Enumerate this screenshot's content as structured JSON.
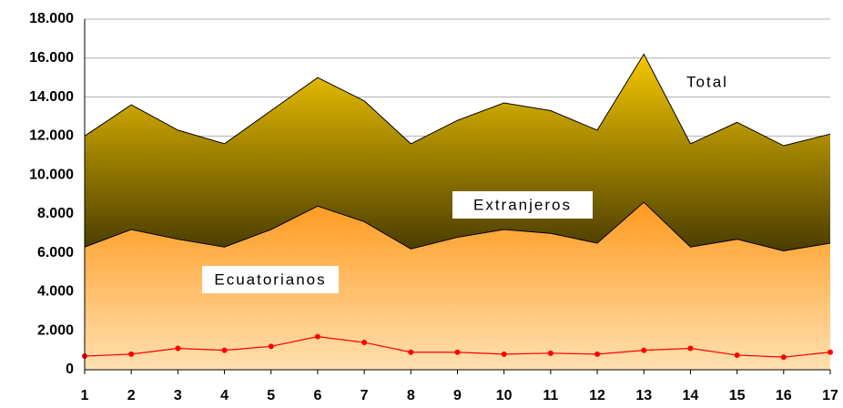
{
  "chart_data": {
    "type": "area",
    "x": [
      1,
      2,
      3,
      4,
      5,
      6,
      7,
      8,
      9,
      10,
      11,
      12,
      13,
      14,
      15,
      16,
      17
    ],
    "xlim": [
      1,
      17
    ],
    "ylim": [
      0,
      18000
    ],
    "yticks": [
      0,
      {
        "value": 2000,
        "label": "2.000"
      },
      {
        "value": 4000,
        "label": "4.000"
      },
      {
        "value": 6000,
        "label": "6.000"
      },
      {
        "value": 8000,
        "label": "8.000"
      },
      {
        "value": 10000,
        "label": "10.000"
      },
      {
        "value": 12000,
        "label": "12.000"
      },
      {
        "value": 14000,
        "label": "14.000"
      },
      {
        "value": 16000,
        "label": "16.000"
      },
      {
        "value": 18000,
        "label": "18.000"
      }
    ],
    "grid": true,
    "stacked": true,
    "series": [
      {
        "name": "Ecuatorianos",
        "color": "#ff9a1e",
        "values": [
          6300,
          7200,
          6700,
          6300,
          7200,
          8400,
          7600,
          6200,
          6800,
          7200,
          7000,
          6500,
          8600,
          6300,
          6700,
          6100,
          6500
        ]
      },
      {
        "name": "Extranjeros",
        "color": "#f5c800",
        "values": [
          5700,
          6400,
          5600,
          5300,
          6100,
          6600,
          6200,
          5400,
          6000,
          6500,
          6300,
          5800,
          7600,
          5300,
          6000,
          5400,
          5600
        ]
      },
      {
        "color": "#ff0000",
        "stacked": false,
        "values": [
          700,
          800,
          1100,
          1000,
          1200,
          1700,
          1400,
          900,
          900,
          800,
          850,
          800,
          1000,
          1100,
          750,
          650,
          900
        ]
      }
    ],
    "annotations": [
      "Total"
    ]
  }
}
